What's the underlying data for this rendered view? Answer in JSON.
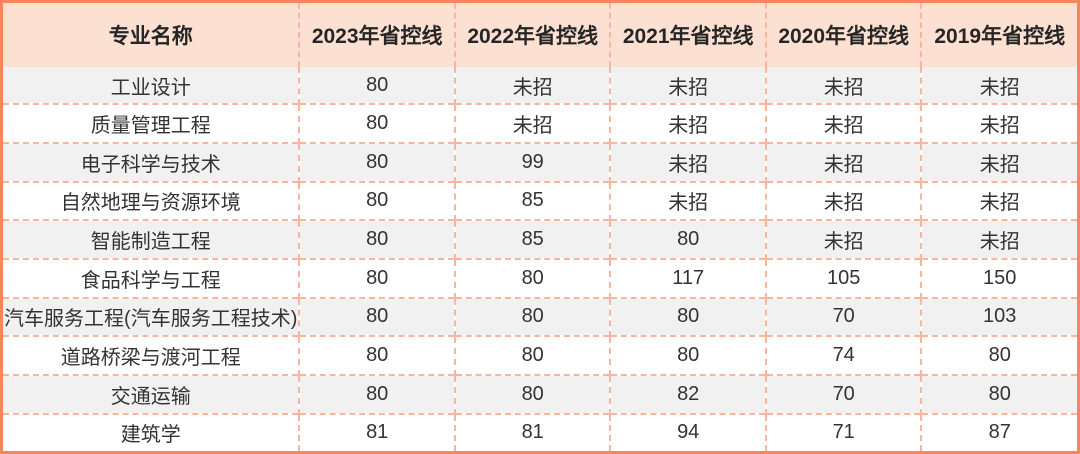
{
  "colors": {
    "outer_border": "#f9855f",
    "inner_border_dashed": "#f8b79c",
    "header_bg": "#fce0d2",
    "header_text": "#262626",
    "cell_text": "#333333",
    "row_alt_bg": "#f1f1f1",
    "row_bg": "#ffffff"
  },
  "table": {
    "columns": [
      "专业名称",
      "2023年省控线",
      "2022年省控线",
      "2021年省控线",
      "2020年省控线",
      "2019年省控线"
    ],
    "rows": [
      {
        "major": "工业设计",
        "values": [
          "80",
          "未招",
          "未招",
          "未招",
          "未招"
        ]
      },
      {
        "major": "质量管理工程",
        "values": [
          "80",
          "未招",
          "未招",
          "未招",
          "未招"
        ]
      },
      {
        "major": "电子科学与技术",
        "values": [
          "80",
          "99",
          "未招",
          "未招",
          "未招"
        ]
      },
      {
        "major": "自然地理与资源环境",
        "values": [
          "80",
          "85",
          "未招",
          "未招",
          "未招"
        ]
      },
      {
        "major": "智能制造工程",
        "values": [
          "80",
          "85",
          "80",
          "未招",
          "未招"
        ]
      },
      {
        "major": "食品科学与工程",
        "values": [
          "80",
          "80",
          "117",
          "105",
          "150"
        ]
      },
      {
        "major": "汽车服务工程(汽车服务工程技术)",
        "values": [
          "80",
          "80",
          "80",
          "70",
          "103"
        ]
      },
      {
        "major": "道路桥梁与渡河工程",
        "values": [
          "80",
          "80",
          "80",
          "74",
          "80"
        ]
      },
      {
        "major": "交通运输",
        "values": [
          "80",
          "80",
          "82",
          "70",
          "80"
        ]
      },
      {
        "major": "建筑学",
        "values": [
          "81",
          "81",
          "94",
          "71",
          "87"
        ]
      }
    ]
  },
  "chart_data": {
    "type": "table",
    "columns": [
      "专业名称",
      "2023年省控线",
      "2022年省控线",
      "2021年省控线",
      "2020年省控线",
      "2019年省控线"
    ],
    "rows": [
      [
        "工业设计",
        "80",
        "未招",
        "未招",
        "未招",
        "未招"
      ],
      [
        "质量管理工程",
        "80",
        "未招",
        "未招",
        "未招",
        "未招"
      ],
      [
        "电子科学与技术",
        "80",
        "99",
        "未招",
        "未招",
        "未招"
      ],
      [
        "自然地理与资源环境",
        "80",
        "85",
        "未招",
        "未招",
        "未招"
      ],
      [
        "智能制造工程",
        "80",
        "85",
        "80",
        "未招",
        "未招"
      ],
      [
        "食品科学与工程",
        "80",
        "80",
        "117",
        "105",
        "150"
      ],
      [
        "汽车服务工程(汽车服务工程技术)",
        "80",
        "80",
        "80",
        "70",
        "103"
      ],
      [
        "道路桥梁与渡河工程",
        "80",
        "80",
        "80",
        "74",
        "80"
      ],
      [
        "交通运输",
        "80",
        "80",
        "82",
        "70",
        "80"
      ],
      [
        "建筑学",
        "81",
        "81",
        "94",
        "71",
        "87"
      ]
    ]
  }
}
